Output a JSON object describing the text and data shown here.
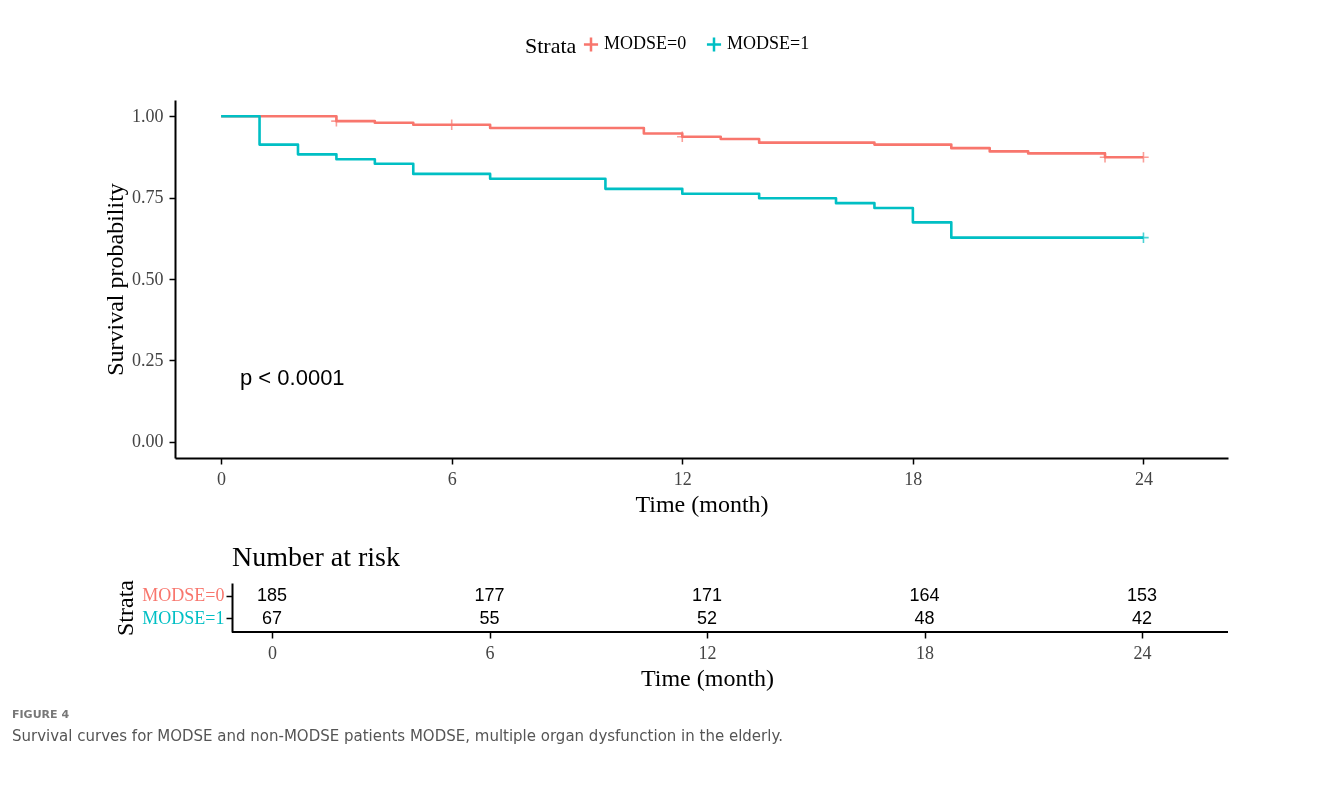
{
  "chart_data": [
    {
      "type": "step",
      "xlabel": "Time (month)",
      "ylabel": "Survival probability",
      "legend": "top",
      "legend_title": "Strata",
      "grid": false,
      "xlim": [
        -1.2,
        26.2
      ],
      "xticks": [
        0,
        6,
        12,
        18,
        24
      ],
      "ylim": [
        -0.05,
        1.05
      ],
      "yticks": [
        {
          "value": 0,
          "label": "0.00"
        },
        {
          "value": 0.25,
          "label": "0.25"
        },
        {
          "value": 0.5,
          "label": "0.50"
        },
        {
          "value": 0.75,
          "label": "0.75"
        },
        {
          "value": 1,
          "label": "1.00"
        }
      ],
      "annotations": [
        "p < 0.0001"
      ],
      "series": [
        {
          "name": "MODSE=0",
          "color": "#f8766d",
          "x": [
            0,
            3,
            4,
            5,
            7,
            11,
            12,
            13,
            14,
            17,
            19,
            20,
            21,
            23,
            24
          ],
          "values": [
            1,
            0.985,
            0.98,
            0.974,
            0.964,
            0.947,
            0.937,
            0.93,
            0.919,
            0.913,
            0.902,
            0.892,
            0.886,
            0.874,
            0.874
          ]
        },
        {
          "type": "scatter",
          "marker": "cross",
          "color": "#f8766d",
          "x": [
            3,
            6,
            12,
            23,
            24
          ],
          "values": [
            0.985,
            0.974,
            0.937,
            0.874,
            0.874
          ]
        },
        {
          "name": "MODSE=1",
          "color": "#00bfc4",
          "x": [
            0,
            1,
            2,
            3,
            4,
            5,
            7,
            10,
            12,
            14,
            16,
            17,
            18,
            19,
            24
          ],
          "values": [
            1,
            0.913,
            0.883,
            0.868,
            0.854,
            0.823,
            0.808,
            0.777,
            0.762,
            0.748,
            0.733,
            0.718,
            0.674,
            0.627,
            0.627
          ]
        },
        {
          "type": "scatter",
          "marker": "cross",
          "color": "#00bfc4",
          "x": [
            24
          ],
          "values": [
            0.627
          ]
        }
      ]
    },
    {
      "type": "heatmap",
      "title": "Number at risk",
      "ylabel": "Strata",
      "xlabel": "Time (month)",
      "categories": [
        "0",
        "6",
        "12",
        "18",
        "24"
      ],
      "y_categories": [
        "MODSE=0",
        "MODSE=1"
      ],
      "colors": [
        "#f8766d",
        "#00bfc4"
      ],
      "cells": [
        [
          185,
          177,
          171,
          164,
          153
        ],
        [
          67,
          55,
          52,
          48,
          42
        ]
      ],
      "data_labels": true,
      "annotations": [
        "FIGURE 4",
        "Survival curves for MODSE and non-MODSE patients MODSE, multiple organ dysfunction in the elderly."
      ]
    }
  ]
}
